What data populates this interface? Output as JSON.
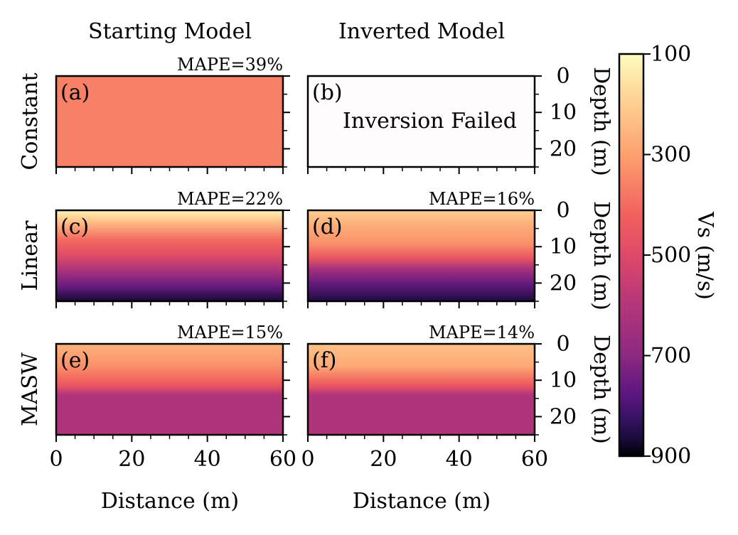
{
  "chart_data": {
    "type": "heatmap",
    "column_titles": [
      "Starting Model",
      "Inverted Model"
    ],
    "row_labels": [
      "Constant",
      "Linear",
      "MASW"
    ],
    "xlabel": "Distance (m)",
    "ylabel": "Depth (m)",
    "xlim": [
      0,
      60
    ],
    "ylim": [
      0,
      25
    ],
    "xticks": [
      "0",
      "20",
      "40",
      "60"
    ],
    "yticks": [
      "0",
      "10",
      "20"
    ],
    "x_tick_values": [
      0,
      20,
      40,
      60
    ],
    "y_tick_values": [
      0,
      10,
      20
    ],
    "colorbar": {
      "label": "Vs (m/s)",
      "range": [
        100,
        900
      ],
      "ticks": [
        "100",
        "300",
        "500",
        "700",
        "900"
      ],
      "tick_values": [
        100,
        300,
        500,
        700,
        900
      ],
      "colormap": "magma_r"
    },
    "panels": [
      {
        "id": "a",
        "tag": "(a)",
        "row": 0,
        "col": 0,
        "mape": "MAPE=39%",
        "note": "",
        "profile": [
          {
            "depth": 0,
            "vs": 360
          },
          {
            "depth": 25,
            "vs": 360
          }
        ]
      },
      {
        "id": "b",
        "tag": "(b)",
        "row": 0,
        "col": 1,
        "mape": "",
        "note": "Inversion Failed",
        "profile": []
      },
      {
        "id": "c",
        "tag": "(c)",
        "row": 1,
        "col": 0,
        "mape": "MAPE=22%",
        "note": "",
        "profile": [
          {
            "depth": 0,
            "vs": 120
          },
          {
            "depth": 3,
            "vs": 230
          },
          {
            "depth": 8,
            "vs": 400
          },
          {
            "depth": 12,
            "vs": 480
          },
          {
            "depth": 17,
            "vs": 640
          },
          {
            "depth": 21,
            "vs": 760
          },
          {
            "depth": 25,
            "vs": 870
          }
        ]
      },
      {
        "id": "d",
        "tag": "(d)",
        "row": 1,
        "col": 1,
        "mape": "MAPE=16%",
        "note": "",
        "profile": [
          {
            "depth": 0,
            "vs": 200
          },
          {
            "depth": 4,
            "vs": 270
          },
          {
            "depth": 9,
            "vs": 330
          },
          {
            "depth": 13,
            "vs": 450
          },
          {
            "depth": 16,
            "vs": 630
          },
          {
            "depth": 20,
            "vs": 760
          },
          {
            "depth": 25,
            "vs": 860
          }
        ]
      },
      {
        "id": "e",
        "tag": "(e)",
        "row": 2,
        "col": 0,
        "mape": "MAPE=15%",
        "note": "",
        "profile": [
          {
            "depth": 0,
            "vs": 260
          },
          {
            "depth": 6,
            "vs": 330
          },
          {
            "depth": 10,
            "vs": 410
          },
          {
            "depth": 12,
            "vs": 480
          },
          {
            "depth": 14,
            "vs": 610
          },
          {
            "depth": 25,
            "vs": 610
          }
        ]
      },
      {
        "id": "f",
        "tag": "(f)",
        "row": 2,
        "col": 1,
        "mape": "MAPE=14%",
        "note": "",
        "profile": [
          {
            "depth": 0,
            "vs": 230
          },
          {
            "depth": 6,
            "vs": 280
          },
          {
            "depth": 10,
            "vs": 400
          },
          {
            "depth": 12,
            "vs": 480
          },
          {
            "depth": 14,
            "vs": 610
          },
          {
            "depth": 25,
            "vs": 610
          }
        ]
      }
    ]
  }
}
